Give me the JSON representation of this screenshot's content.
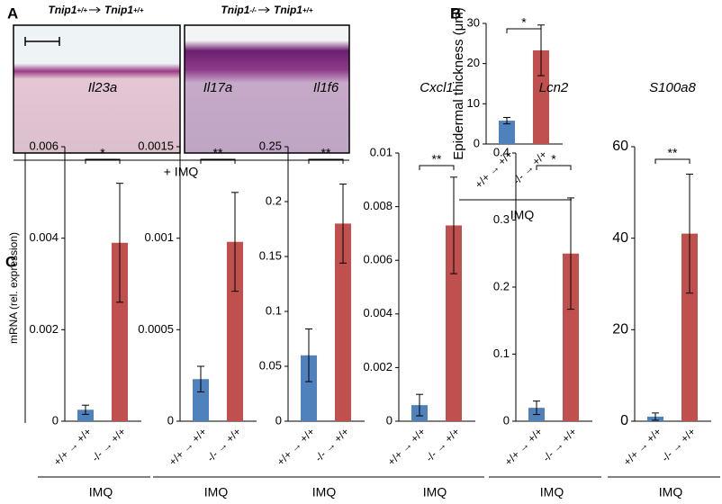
{
  "panel_labels": [
    "A",
    "B",
    "C"
  ],
  "histology": {
    "headers": [
      {
        "donor_gene": "Tnip1",
        "donor": "+/+",
        "recipient_gene": "Tnip1",
        "recipient": "+/+"
      },
      {
        "donor_gene": "Tnip1",
        "donor": "-/-",
        "recipient_gene": "Tnip1",
        "recipient": "+/+"
      }
    ],
    "caption": "+ IMQ"
  },
  "chart_data": [
    {
      "type": "bar",
      "ylabel": "Epidermal thickness (μm)",
      "categories": [
        "+/+ → +/+",
        "-/- → +/+"
      ],
      "values": [
        5.8,
        23.3
      ],
      "errors": [
        0.8,
        6.3
      ],
      "colors": [
        "#4f81bd",
        "#c0504d"
      ],
      "significance": "*",
      "group_label": "IMQ",
      "ylim": [
        0,
        30
      ],
      "yticks": [
        0,
        10,
        20,
        30
      ]
    },
    {
      "type": "bar",
      "title": "Il23a",
      "ylabel": "mRNA (rel. expression)",
      "categories": [
        "+/+ → +/+",
        "-/- → +/+"
      ],
      "values": [
        0.00025,
        0.0039
      ],
      "errors": [
        0.0001,
        0.0013
      ],
      "colors": [
        "#4f81bd",
        "#c0504d"
      ],
      "significance": "*",
      "group_label": "IMQ",
      "ylim": [
        0,
        0.006
      ],
      "yticks": [
        0,
        0.002,
        0.004,
        0.006
      ]
    },
    {
      "type": "bar",
      "title": "Il17a",
      "categories": [
        "+/+ → +/+",
        "-/- → +/+"
      ],
      "values": [
        0.00023,
        0.00098
      ],
      "errors": [
        7e-05,
        0.00027
      ],
      "colors": [
        "#4f81bd",
        "#c0504d"
      ],
      "significance": "**",
      "group_label": "IMQ",
      "ylim": [
        0,
        0.0015
      ],
      "yticks": [
        0,
        0.0005,
        0.001,
        0.0015
      ]
    },
    {
      "type": "bar",
      "title": "Il1f6",
      "categories": [
        "+/+ → +/+",
        "-/- → +/+"
      ],
      "values": [
        0.06,
        0.18
      ],
      "errors": [
        0.024,
        0.036
      ],
      "colors": [
        "#4f81bd",
        "#c0504d"
      ],
      "significance": "**",
      "group_label": "IMQ",
      "ylim": [
        0,
        0.25
      ],
      "yticks": [
        0,
        0.05,
        0.1,
        0.15,
        0.2,
        0.25
      ]
    },
    {
      "type": "bar",
      "title": "Cxcl1",
      "categories": [
        "+/+ → +/+",
        "-/- → +/+"
      ],
      "values": [
        0.0006,
        0.0073
      ],
      "errors": [
        0.0004,
        0.0018
      ],
      "colors": [
        "#4f81bd",
        "#c0504d"
      ],
      "significance": "**",
      "group_label": "IMQ",
      "ylim": [
        0,
        0.01
      ],
      "yticks": [
        0,
        0.002,
        0.004,
        0.006,
        0.008,
        0.01
      ]
    },
    {
      "type": "bar",
      "title": "Lcn2",
      "categories": [
        "+/+ → +/+",
        "-/- → +/+"
      ],
      "values": [
        0.02,
        0.25
      ],
      "errors": [
        0.01,
        0.083
      ],
      "colors": [
        "#4f81bd",
        "#c0504d"
      ],
      "significance": "*",
      "group_label": "IMQ",
      "ylim": [
        0,
        0.4
      ],
      "yticks": [
        0,
        0.1,
        0.2,
        0.3,
        0.4
      ]
    },
    {
      "type": "bar",
      "title": "S100a8",
      "categories": [
        "+/+ → +/+",
        "-/- → +/+"
      ],
      "values": [
        1,
        41
      ],
      "errors": [
        0.8,
        13
      ],
      "colors": [
        "#4f81bd",
        "#c0504d"
      ],
      "significance": "**",
      "group_label": "IMQ",
      "ylim": [
        0,
        60
      ],
      "yticks": [
        0,
        20,
        40,
        60
      ]
    }
  ]
}
